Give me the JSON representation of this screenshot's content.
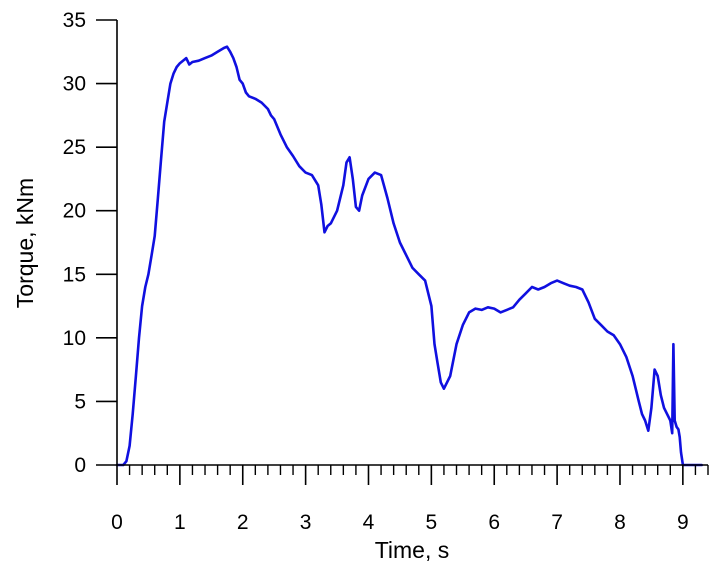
{
  "chart_data": {
    "type": "line",
    "title": "",
    "xlabel": "Time, s",
    "ylabel": "Torque, kNm",
    "xlim": [
      0,
      9.4
    ],
    "ylim": [
      0,
      35
    ],
    "x_ticks": [
      0,
      1,
      2,
      3,
      4,
      5,
      6,
      7,
      8,
      9
    ],
    "x_tick_labels": [
      "0",
      "1",
      "2",
      "3",
      "4",
      "5",
      "6",
      "7",
      "8",
      "9"
    ],
    "y_ticks": [
      0,
      5,
      10,
      15,
      20,
      25,
      30,
      35
    ],
    "y_tick_labels": [
      "0",
      "5",
      "10",
      "15",
      "20",
      "25",
      "30",
      "35"
    ],
    "x_minor_step": 0.2,
    "grid": false,
    "legend": "none",
    "series_color": "#1010e0",
    "series": [
      {
        "x": [
          0,
          0.1,
          0.15,
          0.2,
          0.25,
          0.3,
          0.35,
          0.4,
          0.45,
          0.5,
          0.55,
          0.6,
          0.65,
          0.7,
          0.75,
          0.8,
          0.85,
          0.9,
          0.95,
          1.0,
          1.05,
          1.1,
          1.15,
          1.2,
          1.3,
          1.4,
          1.5,
          1.6,
          1.7,
          1.75,
          1.8,
          1.85,
          1.9,
          1.95,
          2.0,
          2.05,
          2.1,
          2.2,
          2.3,
          2.4,
          2.45,
          2.5,
          2.6,
          2.7,
          2.8,
          2.9,
          3.0,
          3.1,
          3.2,
          3.25,
          3.3,
          3.35,
          3.4,
          3.5,
          3.6,
          3.65,
          3.7,
          3.75,
          3.8,
          3.85,
          3.9,
          4.0,
          4.1,
          4.2,
          4.3,
          4.4,
          4.5,
          4.6,
          4.7,
          4.8,
          4.9,
          5.0,
          5.05,
          5.1,
          5.15,
          5.2,
          5.3,
          5.4,
          5.5,
          5.6,
          5.7,
          5.8,
          5.9,
          6.0,
          6.1,
          6.2,
          6.3,
          6.4,
          6.5,
          6.6,
          6.7,
          6.8,
          6.9,
          7.0,
          7.1,
          7.2,
          7.3,
          7.4,
          7.5,
          7.6,
          7.7,
          7.8,
          7.9,
          8.0,
          8.1,
          8.2,
          8.3,
          8.35,
          8.4,
          8.45,
          8.5,
          8.55,
          8.6,
          8.65,
          8.7,
          8.75,
          8.8,
          8.83,
          8.85,
          8.87,
          8.9,
          8.93,
          8.95,
          8.97,
          9.0,
          9.3
        ],
        "y": [
          0,
          0,
          0.3,
          1.5,
          4.0,
          7.0,
          10.0,
          12.5,
          14.0,
          15.0,
          16.5,
          18.0,
          21.0,
          24.0,
          27.0,
          28.5,
          30.0,
          30.8,
          31.3,
          31.6,
          31.8,
          32.0,
          31.5,
          31.7,
          31.8,
          32.0,
          32.2,
          32.5,
          32.8,
          32.9,
          32.5,
          32.0,
          31.3,
          30.3,
          30.0,
          29.3,
          29.0,
          28.8,
          28.5,
          28.0,
          27.5,
          27.2,
          26.0,
          25.0,
          24.3,
          23.5,
          23.0,
          22.8,
          22.0,
          20.5,
          18.3,
          18.8,
          19.0,
          20.0,
          22.0,
          23.8,
          24.2,
          22.5,
          20.3,
          20.0,
          21.2,
          22.5,
          23.0,
          22.8,
          21.0,
          19.0,
          17.5,
          16.5,
          15.5,
          15.0,
          14.5,
          12.5,
          9.5,
          8.0,
          6.5,
          6.0,
          7.0,
          9.5,
          11.0,
          12.0,
          12.3,
          12.2,
          12.4,
          12.3,
          12.0,
          12.2,
          12.4,
          13.0,
          13.5,
          14.0,
          13.8,
          14.0,
          14.3,
          14.5,
          14.3,
          14.1,
          14.0,
          13.8,
          12.8,
          11.5,
          11.0,
          10.5,
          10.2,
          9.5,
          8.5,
          7.0,
          5.0,
          4.0,
          3.5,
          2.7,
          4.5,
          7.5,
          7.0,
          5.5,
          4.5,
          4.0,
          3.5,
          2.5,
          9.5,
          3.5,
          3.0,
          2.8,
          2.2,
          1.0,
          0,
          0
        ]
      }
    ]
  }
}
